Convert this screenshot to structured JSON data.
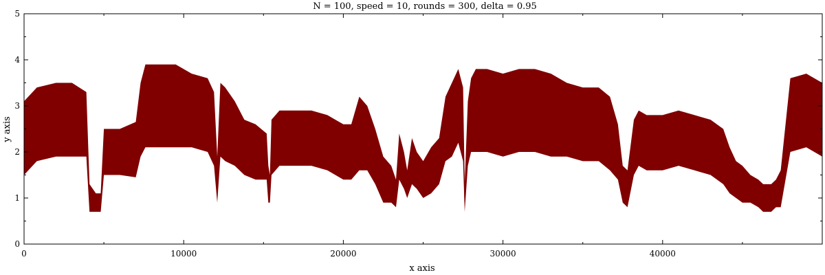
{
  "chart_data": {
    "type": "line",
    "title": "N = 100, speed = 10, rounds = 300, delta = 0.95",
    "xlabel": "x axis",
    "ylabel": "y axis",
    "xlim": [
      0,
      50000
    ],
    "ylim": [
      0,
      5
    ],
    "x_ticks": [
      0,
      10000,
      20000,
      30000,
      40000
    ],
    "x_tick_labels": [
      "0",
      "10000",
      "20000",
      "30000",
      "40000"
    ],
    "y_ticks": [
      0,
      1,
      2,
      3,
      4,
      5
    ],
    "y_tick_labels": [
      "0",
      "1",
      "2",
      "3",
      "4",
      "5"
    ],
    "grid": false,
    "legend": "none",
    "series_color": "#800000",
    "series": [
      {
        "x": [
          0,
          800,
          2000,
          3000,
          3900,
          4100,
          4500,
          4800,
          5000,
          6000,
          7000,
          7300,
          7600,
          8500,
          9500,
          10500,
          11500,
          11900,
          12100,
          12300,
          12600,
          13200,
          13800,
          14500,
          15200,
          15300,
          15400,
          15500,
          16000,
          17000,
          18000,
          19000,
          19500,
          20000,
          20500,
          21000,
          21500,
          22000,
          22500,
          23000,
          23300,
          23500,
          23800,
          24000,
          24300,
          24600,
          25000,
          25500,
          26000,
          26400,
          26800,
          27200,
          27500,
          27600,
          27800,
          28000,
          28300,
          29000,
          30000,
          31000,
          32000,
          33000,
          34000,
          35000,
          36000,
          36700,
          37200,
          37500,
          37800,
          38200,
          38500,
          39000,
          40000,
          41000,
          42000,
          43000,
          43800,
          44200,
          44600,
          45000,
          45500,
          46000,
          46300,
          46500,
          46800,
          47100,
          47400,
          48000,
          49000,
          50000
        ],
        "y": [
          2.3,
          2.6,
          2.7,
          2.7,
          2.6,
          1.0,
          0.9,
          0.9,
          2.0,
          2.0,
          2.05,
          2.7,
          3.0,
          3.0,
          3.0,
          2.9,
          2.8,
          2.5,
          1.4,
          2.7,
          2.6,
          2.4,
          2.1,
          2.0,
          1.9,
          1.3,
          1.2,
          2.1,
          2.3,
          2.3,
          2.3,
          2.2,
          2.1,
          2.0,
          2.0,
          2.4,
          2.3,
          1.9,
          1.4,
          1.3,
          1.1,
          1.9,
          1.6,
          1.3,
          1.8,
          1.6,
          1.4,
          1.6,
          1.8,
          2.5,
          2.7,
          3.0,
          2.6,
          1.0,
          2.4,
          2.8,
          2.9,
          2.9,
          2.8,
          2.9,
          2.9,
          2.8,
          2.7,
          2.6,
          2.6,
          2.4,
          2.0,
          1.3,
          1.2,
          2.1,
          2.3,
          2.2,
          2.2,
          2.3,
          2.2,
          2.1,
          1.9,
          1.6,
          1.4,
          1.3,
          1.2,
          1.1,
          1.0,
          1.0,
          1.0,
          1.1,
          1.2,
          2.8,
          2.9,
          2.7
        ],
        "band": [
          0.8,
          0.8,
          0.8,
          0.8,
          0.7,
          0.3,
          0.2,
          0.2,
          0.5,
          0.5,
          0.6,
          0.8,
          0.9,
          0.9,
          0.9,
          0.8,
          0.8,
          0.8,
          0.5,
          0.8,
          0.8,
          0.7,
          0.6,
          0.6,
          0.5,
          0.4,
          0.3,
          0.6,
          0.6,
          0.6,
          0.6,
          0.6,
          0.6,
          0.6,
          0.6,
          0.8,
          0.7,
          0.6,
          0.5,
          0.4,
          0.3,
          0.5,
          0.4,
          0.3,
          0.5,
          0.4,
          0.4,
          0.5,
          0.5,
          0.7,
          0.8,
          0.8,
          0.8,
          0.3,
          0.7,
          0.8,
          0.9,
          0.9,
          0.9,
          0.9,
          0.9,
          0.9,
          0.8,
          0.8,
          0.8,
          0.8,
          0.6,
          0.4,
          0.4,
          0.6,
          0.6,
          0.6,
          0.6,
          0.6,
          0.6,
          0.6,
          0.6,
          0.5,
          0.4,
          0.4,
          0.3,
          0.3,
          0.3,
          0.3,
          0.3,
          0.3,
          0.4,
          0.8,
          0.8,
          0.8
        ]
      }
    ]
  }
}
